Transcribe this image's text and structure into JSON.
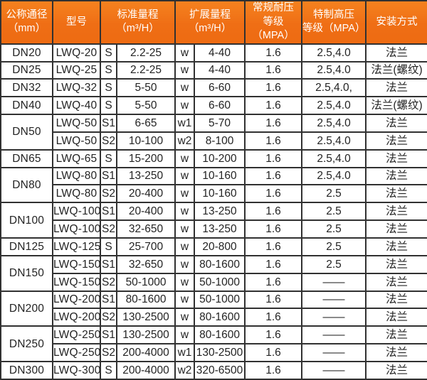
{
  "table": {
    "title": "LWQ flow meter specification table",
    "colors": {
      "header_bg": "#f0741a",
      "header_text": "#ffffff",
      "border": "#313131",
      "body_text": "#232323",
      "body_bg": "#ffffff"
    },
    "headers": {
      "dn": "公称通径\n（mm）",
      "model": "型号",
      "std_range": "标准量程\n（m³/H）",
      "ext_range": "扩展量程\n（m³/H）",
      "pressure": "常规耐压\n等级（MPA）",
      "high_pressure": "特制高压\n等级（MPA）",
      "install": "安装方式"
    },
    "rows": [
      {
        "dn": "DN20",
        "dn_span": 1,
        "model": "LWQ-20",
        "s": "S",
        "std": "2.2-25",
        "w": "w",
        "ext": "4-40",
        "pressure": "1.6",
        "high": "2.5,4.0",
        "install": "法兰"
      },
      {
        "dn": "DN25",
        "dn_span": 1,
        "model": "LWQ-25",
        "s": "S",
        "std": "2.2-25",
        "w": "w",
        "ext": "4-40",
        "pressure": "1.6",
        "high": "2.5,4.0",
        "install": "法兰(螺纹)"
      },
      {
        "dn": "DN32",
        "dn_span": 1,
        "model": "LWQ-32",
        "s": "S",
        "std": "5-50",
        "w": "w",
        "ext": "6-60",
        "pressure": "1.6",
        "high": "2.5,4.0,",
        "install": "法兰"
      },
      {
        "dn": "DN40",
        "dn_span": 1,
        "model": "LWQ-40",
        "s": "S",
        "std": "5-50",
        "w": "w",
        "ext": "6-60",
        "pressure": "1.6",
        "high": "2.5,4.0",
        "install": "法兰(螺纹)"
      },
      {
        "dn": "DN50",
        "dn_span": 2,
        "model": "LWQ-50",
        "s": "S1",
        "std": "6-65",
        "w": "w1",
        "ext": "5-70",
        "pressure": "1.6",
        "high": "2.5,4.0",
        "install": "法兰"
      },
      {
        "model": "LWQ-50",
        "s": "S2",
        "std": "10-100",
        "w": "w2",
        "ext": "8-100",
        "pressure": "1.6",
        "high": "2.5,4.0",
        "install": "法兰"
      },
      {
        "dn": "DN65",
        "dn_span": 1,
        "model": "LWQ-65",
        "s": "S",
        "std": "15-200",
        "w": "w",
        "ext": "10-200",
        "pressure": "1.6",
        "high": "2.5,4.0",
        "install": "法兰"
      },
      {
        "dn": "DN80",
        "dn_span": 2,
        "model": "LWQ-80",
        "s": "S1",
        "std": "13-250",
        "w": "w",
        "ext": "10-160",
        "pressure": "1.6",
        "high": "2.5,4.0",
        "install": "法兰"
      },
      {
        "model": "LWQ-80",
        "s": "S2",
        "std": "20-400",
        "w": "w",
        "ext": "10-160",
        "pressure": "1.6",
        "high": "2.5",
        "install": "法兰"
      },
      {
        "dn": "DN100",
        "dn_span": 2,
        "model": "LWQ-100",
        "s": "S1",
        "std": "20-400",
        "w": "w",
        "ext": "13-250",
        "pressure": "1.6",
        "high": "2.5",
        "install": "法兰"
      },
      {
        "model": "LWQ-100",
        "s": "S2",
        "std": "32-650",
        "w": "w",
        "ext": "13-250",
        "pressure": "1.6",
        "high": "2.5",
        "install": "法兰"
      },
      {
        "dn": "DN125",
        "dn_span": 1,
        "model": "LWQ-125",
        "s": "S",
        "std": "25-700",
        "w": "w",
        "ext": "20-800",
        "pressure": "1.6",
        "high": "2.5",
        "install": "法兰"
      },
      {
        "dn": "DN150",
        "dn_span": 2,
        "model": "LWQ-150",
        "s": "S1",
        "std": "32-650",
        "w": "w",
        "ext": "80-1600",
        "pressure": "1.6",
        "high": "2.5",
        "install": "法兰"
      },
      {
        "model": "LWQ-150",
        "s": "S2",
        "std": "50-1000",
        "w": "w",
        "ext": "50-1000",
        "pressure": "1.6",
        "high": "——",
        "install": "法兰"
      },
      {
        "dn": "DN200",
        "dn_span": 2,
        "model": "LWQ-200",
        "s": "S1",
        "std": "80-1600",
        "w": "w",
        "ext": "50-1000",
        "pressure": "1.6",
        "high": "——",
        "install": "法兰"
      },
      {
        "model": "LWQ-200",
        "s": "S2",
        "std": "130-2500",
        "w": "w",
        "ext": "80-1600",
        "pressure": "1.6",
        "high": "——",
        "install": "法兰"
      },
      {
        "dn": "DN250",
        "dn_span": 2,
        "model": "LWQ-250",
        "s": "S1",
        "std": "130-2500",
        "w": "w",
        "ext": "80-1600",
        "pressure": "1.6",
        "high": "——",
        "install": "法兰"
      },
      {
        "model": "LWQ-250",
        "s": "S2",
        "std": "200-4000",
        "w": "w1",
        "ext": "130-2500",
        "pressure": "1.6",
        "high": "——",
        "install": "法兰"
      },
      {
        "dn": "DN300",
        "dn_span": 1,
        "model": "LWQ-300",
        "s": "S",
        "std": "200-4000",
        "w": "w2",
        "ext": "320-6500",
        "pressure": "1.6",
        "high": "——",
        "install": "法兰"
      }
    ]
  }
}
